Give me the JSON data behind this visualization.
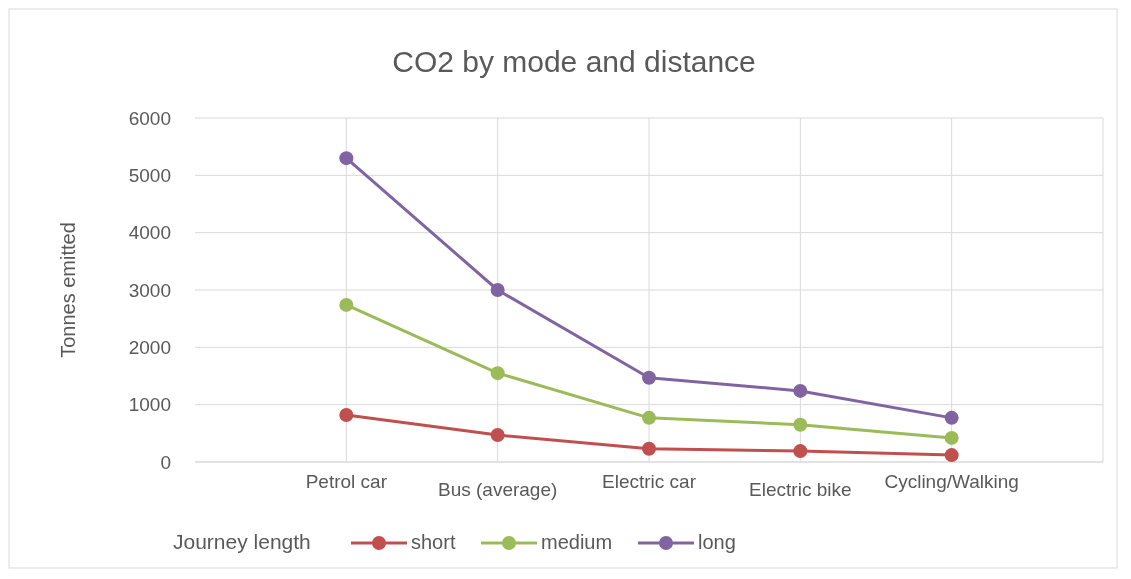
{
  "chart_data": {
    "type": "line",
    "title": "CO2 by mode and distance",
    "ylabel": "Tonnes emitted",
    "legend_title": "Journey length",
    "categories": [
      "Petrol car",
      "Bus (average)",
      "Electric car",
      "Electric bike",
      "Cycling/Walking"
    ],
    "series": [
      {
        "name": "short",
        "color": "#c0504d",
        "values": [
          820,
          470,
          230,
          190,
          120
        ]
      },
      {
        "name": "medium",
        "color": "#9bbb59",
        "values": [
          2740,
          1550,
          770,
          650,
          420
        ]
      },
      {
        "name": "long",
        "color": "#8064a2",
        "values": [
          5300,
          3000,
          1470,
          1240,
          770
        ]
      }
    ],
    "ylim": [
      0,
      6000
    ],
    "yticks": [
      0,
      1000,
      2000,
      3000,
      4000,
      5000,
      6000
    ],
    "grid": true,
    "legend": "bottom",
    "marker": "circle",
    "line_style": "solid"
  }
}
